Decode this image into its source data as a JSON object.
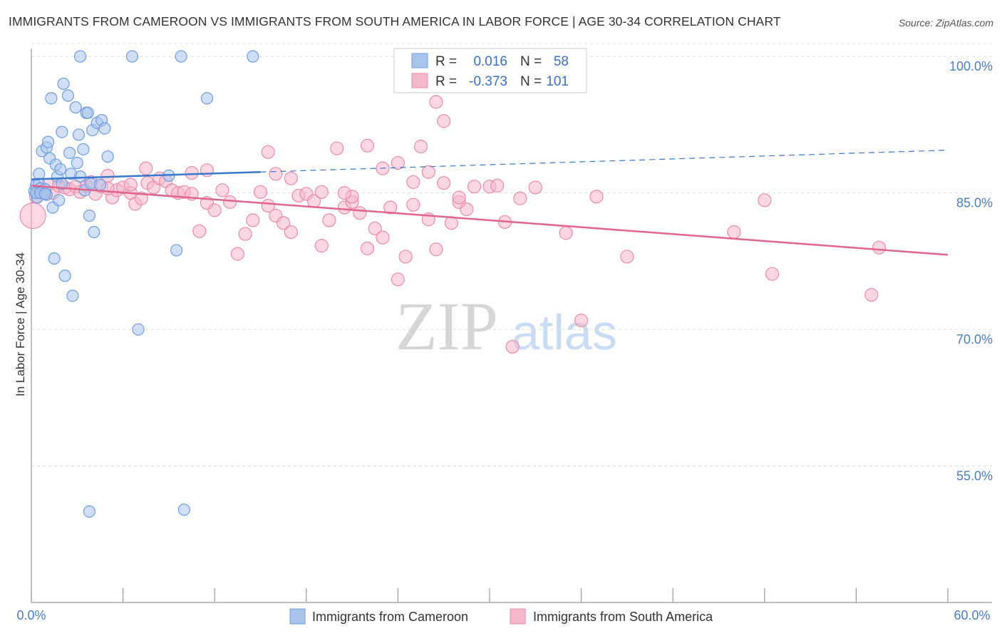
{
  "title": "IMMIGRANTS FROM CAMEROON VS IMMIGRANTS FROM SOUTH AMERICA IN LABOR FORCE | AGE 30-34 CORRELATION CHART",
  "source": "Source: ZipAtlas.com",
  "watermark": {
    "zip": "ZIP",
    "atlas": "atlas"
  },
  "colors": {
    "blue_fill": "#a9c4ec",
    "blue_stroke": "#6f9ee0",
    "blue_line": "#3a78cc",
    "pink_fill": "#f5b7cb",
    "pink_stroke": "#e98bab",
    "pink_line": "#e0668f",
    "tick_color": "#4a7cc7",
    "grid": "#dddddd"
  },
  "legend_stats": [
    {
      "r_label": "R =",
      "r_value": "0.016",
      "n_label": "N =",
      "n_value": "58"
    },
    {
      "r_label": "R =",
      "r_value": "-0.373",
      "n_label": "N =",
      "n_value": "101"
    }
  ],
  "chart_data": {
    "type": "scatter",
    "xlabel": "",
    "ylabel": "In Labor Force | Age 30-34",
    "xlim": [
      0,
      60
    ],
    "ylim": [
      40,
      101.5
    ],
    "x_tick_labels": [
      "0.0%",
      "60.0%"
    ],
    "y_ticks": [
      55,
      70,
      85,
      100
    ],
    "y_tick_labels": [
      "55.0%",
      "70.0%",
      "85.0%",
      "100.0%"
    ],
    "grid": true,
    "legend_position": "bottom",
    "series": [
      {
        "name": "Immigrants from Cameroon",
        "color": "#6f9ee0",
        "trend": {
          "x0": 0,
          "y0": 86.5,
          "x1": 15,
          "y1": 87.3,
          "dash_to_x": 60,
          "dash_to_y": 89.7
        },
        "points": [
          [
            0.2,
            85.2
          ],
          [
            0.3,
            85.8
          ],
          [
            0.4,
            84.5
          ],
          [
            0.5,
            86.0
          ],
          [
            0.5,
            87.1
          ],
          [
            0.6,
            85.5
          ],
          [
            0.7,
            89.6
          ],
          [
            0.8,
            85.1
          ],
          [
            0.9,
            85.4
          ],
          [
            1.0,
            90.0
          ],
          [
            1.1,
            90.6
          ],
          [
            1.2,
            88.8
          ],
          [
            1.3,
            95.4
          ],
          [
            1.4,
            83.4
          ],
          [
            1.5,
            77.8
          ],
          [
            1.6,
            88.1
          ],
          [
            1.7,
            86.8
          ],
          [
            1.8,
            84.2
          ],
          [
            1.9,
            87.6
          ],
          [
            2.0,
            91.7
          ],
          [
            2.1,
            97.0
          ],
          [
            2.2,
            75.9
          ],
          [
            2.4,
            95.7
          ],
          [
            2.5,
            89.4
          ],
          [
            2.6,
            87.1
          ],
          [
            2.7,
            73.7
          ],
          [
            2.9,
            94.4
          ],
          [
            3.0,
            88.3
          ],
          [
            3.1,
            91.4
          ],
          [
            3.2,
            86.8
          ],
          [
            3.4,
            89.8
          ],
          [
            3.5,
            85.3
          ],
          [
            3.6,
            93.8
          ],
          [
            3.7,
            93.8
          ],
          [
            3.8,
            82.5
          ],
          [
            3.9,
            86.0
          ],
          [
            4.0,
            91.9
          ],
          [
            4.1,
            80.7
          ],
          [
            4.3,
            92.7
          ],
          [
            4.5,
            85.9
          ],
          [
            4.6,
            93.0
          ],
          [
            4.8,
            92.1
          ],
          [
            5.0,
            89.0
          ],
          [
            3.8,
            50.0
          ],
          [
            6.6,
            100.0
          ],
          [
            7.0,
            70.0
          ],
          [
            3.2,
            100.0
          ],
          [
            9.0,
            86.9
          ],
          [
            9.5,
            78.7
          ],
          [
            10.0,
            50.2
          ],
          [
            9.8,
            100.0
          ],
          [
            11.5,
            95.4
          ],
          [
            14.5,
            100.0
          ],
          [
            0.3,
            85.0
          ],
          [
            0.6,
            85.0
          ],
          [
            1.0,
            84.8
          ],
          [
            2.0,
            86.0
          ],
          [
            0.9,
            84.9
          ]
        ]
      },
      {
        "name": "Immigrants from South America",
        "color": "#e98bab",
        "trend": {
          "x0": 0,
          "y0": 85.8,
          "x1": 60,
          "y1": 78.2
        },
        "points": [
          [
            0.1,
            82.5
          ],
          [
            0.3,
            84.6
          ],
          [
            0.5,
            85.3
          ],
          [
            0.8,
            85.0
          ],
          [
            1.1,
            85.9
          ],
          [
            1.4,
            85.0
          ],
          [
            1.8,
            85.8
          ],
          [
            2.2,
            85.6
          ],
          [
            2.5,
            85.4
          ],
          [
            2.9,
            85.7
          ],
          [
            3.2,
            85.1
          ],
          [
            3.6,
            85.8
          ],
          [
            3.9,
            86.2
          ],
          [
            4.2,
            84.9
          ],
          [
            4.6,
            85.7
          ],
          [
            5.0,
            86.9
          ],
          [
            5.3,
            84.5
          ],
          [
            5.6,
            85.3
          ],
          [
            6.0,
            85.6
          ],
          [
            6.5,
            85.0
          ],
          [
            6.8,
            83.8
          ],
          [
            7.2,
            84.4
          ],
          [
            7.6,
            86.1
          ],
          [
            8.0,
            85.6
          ],
          [
            8.4,
            86.6
          ],
          [
            8.8,
            86.3
          ],
          [
            9.2,
            85.3
          ],
          [
            9.6,
            85.0
          ],
          [
            10.0,
            85.1
          ],
          [
            10.5,
            84.9
          ],
          [
            11.0,
            80.8
          ],
          [
            11.5,
            83.9
          ],
          [
            12.0,
            83.1
          ],
          [
            12.5,
            85.3
          ],
          [
            13.0,
            84.0
          ],
          [
            13.5,
            78.3
          ],
          [
            14.0,
            80.5
          ],
          [
            14.5,
            82.0
          ],
          [
            15.0,
            85.1
          ],
          [
            15.5,
            83.6
          ],
          [
            16.0,
            82.5
          ],
          [
            16.5,
            81.7
          ],
          [
            17.0,
            80.7
          ],
          [
            17.5,
            84.7
          ],
          [
            18.0,
            84.9
          ],
          [
            18.5,
            84.1
          ],
          [
            19.0,
            79.2
          ],
          [
            19.5,
            82.0
          ],
          [
            20.0,
            89.9
          ],
          [
            20.5,
            83.4
          ],
          [
            21.0,
            84.0
          ],
          [
            21.5,
            82.8
          ],
          [
            22.0,
            78.9
          ],
          [
            22.5,
            81.1
          ],
          [
            23.0,
            80.1
          ],
          [
            23.5,
            83.4
          ],
          [
            24.0,
            88.3
          ],
          [
            24.5,
            78.0
          ],
          [
            25.0,
            83.7
          ],
          [
            25.5,
            90.1
          ],
          [
            26.0,
            82.1
          ],
          [
            26.5,
            78.8
          ],
          [
            27.0,
            86.1
          ],
          [
            27.5,
            81.7
          ],
          [
            28.0,
            84.0
          ],
          [
            28.5,
            83.2
          ],
          [
            29.0,
            85.7
          ],
          [
            31.0,
            81.8
          ],
          [
            32.0,
            84.4
          ],
          [
            33.0,
            85.6
          ],
          [
            16.0,
            87.1
          ],
          [
            17.0,
            86.6
          ],
          [
            19.0,
            85.1
          ],
          [
            21.0,
            84.6
          ],
          [
            23.0,
            87.7
          ],
          [
            25.0,
            86.2
          ],
          [
            26.0,
            87.3
          ],
          [
            27.0,
            92.9
          ],
          [
            28.0,
            84.5
          ],
          [
            30.0,
            85.7
          ],
          [
            30.5,
            85.8
          ],
          [
            35.0,
            80.6
          ],
          [
            36.0,
            71.0
          ],
          [
            39.0,
            78.0
          ],
          [
            46.0,
            80.7
          ],
          [
            48.0,
            84.2
          ],
          [
            48.5,
            76.1
          ],
          [
            55.0,
            73.8
          ],
          [
            55.5,
            79.0
          ],
          [
            31.5,
            68.1
          ],
          [
            24.0,
            75.5
          ],
          [
            22.0,
            90.2
          ],
          [
            20.5,
            85.0
          ],
          [
            15.5,
            89.5
          ],
          [
            11.5,
            87.5
          ],
          [
            10.5,
            87.2
          ],
          [
            7.5,
            87.7
          ],
          [
            6.5,
            85.9
          ],
          [
            5.0,
            85.5
          ],
          [
            26.5,
            95.0
          ],
          [
            37.0,
            84.6
          ]
        ]
      }
    ]
  }
}
